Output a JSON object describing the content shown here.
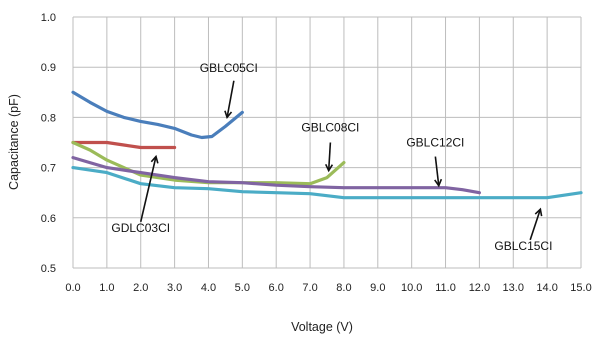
{
  "chart_data": {
    "type": "line",
    "xlabel": "Voltage (V)",
    "ylabel": "Capacitance (pF)",
    "xlim": [
      0,
      15
    ],
    "ylim": [
      0.5,
      1.0
    ],
    "x_ticks": [
      "0.0",
      "1.0",
      "2.0",
      "3.0",
      "4.0",
      "5.0",
      "6.0",
      "7.0",
      "8.0",
      "9.0",
      "10.0",
      "11.0",
      "12.0",
      "13.0",
      "14.0",
      "15.0"
    ],
    "y_ticks": [
      "0.5",
      "0.6",
      "0.7",
      "0.8",
      "0.9",
      "1.0"
    ],
    "grid": true,
    "series": [
      {
        "name": "GBLC05CI",
        "color": "#4a7ebb",
        "points": [
          [
            0,
            0.85
          ],
          [
            0.5,
            0.83
          ],
          [
            1,
            0.812
          ],
          [
            1.5,
            0.8
          ],
          [
            2,
            0.792
          ],
          [
            2.5,
            0.786
          ],
          [
            3,
            0.778
          ],
          [
            3.5,
            0.765
          ],
          [
            3.8,
            0.76
          ],
          [
            4.1,
            0.762
          ],
          [
            4.5,
            0.782
          ],
          [
            5,
            0.81
          ]
        ]
      },
      {
        "name": "GDLC03CI",
        "color": "#c0504d",
        "points": [
          [
            0,
            0.75
          ],
          [
            0.5,
            0.75
          ],
          [
            1,
            0.75
          ],
          [
            1.5,
            0.745
          ],
          [
            2,
            0.74
          ],
          [
            2.5,
            0.74
          ],
          [
            3,
            0.74
          ]
        ]
      },
      {
        "name": "GBLC08CI",
        "color": "#9bbb59",
        "points": [
          [
            0,
            0.75
          ],
          [
            0.5,
            0.735
          ],
          [
            1,
            0.715
          ],
          [
            1.5,
            0.7
          ],
          [
            2,
            0.685
          ],
          [
            2.5,
            0.68
          ],
          [
            3,
            0.675
          ],
          [
            4,
            0.67
          ],
          [
            5,
            0.67
          ],
          [
            6,
            0.67
          ],
          [
            7,
            0.668
          ],
          [
            7.5,
            0.68
          ],
          [
            8,
            0.71
          ]
        ]
      },
      {
        "name": "GBLC12CI",
        "color": "#8064a2",
        "points": [
          [
            0,
            0.72
          ],
          [
            0.5,
            0.71
          ],
          [
            1,
            0.7
          ],
          [
            2,
            0.69
          ],
          [
            3,
            0.68
          ],
          [
            4,
            0.672
          ],
          [
            5,
            0.67
          ],
          [
            6,
            0.665
          ],
          [
            7,
            0.662
          ],
          [
            8,
            0.66
          ],
          [
            9,
            0.66
          ],
          [
            10,
            0.66
          ],
          [
            11,
            0.66
          ],
          [
            11.5,
            0.656
          ],
          [
            12,
            0.65
          ]
        ]
      },
      {
        "name": "GBLC15CI",
        "color": "#4bacc6",
        "points": [
          [
            0,
            0.7
          ],
          [
            1,
            0.69
          ],
          [
            2,
            0.668
          ],
          [
            3,
            0.66
          ],
          [
            4,
            0.658
          ],
          [
            5,
            0.652
          ],
          [
            6,
            0.65
          ],
          [
            7,
            0.648
          ],
          [
            8,
            0.64
          ],
          [
            9,
            0.64
          ],
          [
            10,
            0.64
          ],
          [
            11,
            0.64
          ],
          [
            12,
            0.64
          ],
          [
            13,
            0.64
          ],
          [
            14,
            0.64
          ],
          [
            14.5,
            0.645
          ],
          [
            15,
            0.65
          ]
        ]
      }
    ],
    "annotations": [
      {
        "text": "GBLC05CI",
        "series": "GBLC05CI",
        "label_at": [
          4.6,
          0.89
        ],
        "arrow_from": [
          4.75,
          0.873
        ],
        "arrow_to": [
          4.55,
          0.8
        ]
      },
      {
        "text": "GBLC08CI",
        "series": "GBLC08CI",
        "label_at": [
          7.6,
          0.772
        ],
        "arrow_from": [
          7.6,
          0.75
        ],
        "arrow_to": [
          7.55,
          0.694
        ]
      },
      {
        "text": "GBLC12CI",
        "series": "GBLC12CI",
        "label_at": [
          10.7,
          0.742
        ],
        "arrow_from": [
          10.7,
          0.722
        ],
        "arrow_to": [
          10.8,
          0.664
        ]
      },
      {
        "text": "GDLC03CI",
        "series": "GDLC03CI",
        "label_at": [
          2.0,
          0.572
        ],
        "arrow_from": [
          2.0,
          0.592
        ],
        "arrow_to": [
          2.45,
          0.722
        ]
      },
      {
        "text": "GBLC15CI",
        "series": "GBLC15CI",
        "label_at": [
          13.3,
          0.536
        ],
        "arrow_from": [
          13.5,
          0.556
        ],
        "arrow_to": [
          13.8,
          0.617
        ]
      }
    ]
  }
}
